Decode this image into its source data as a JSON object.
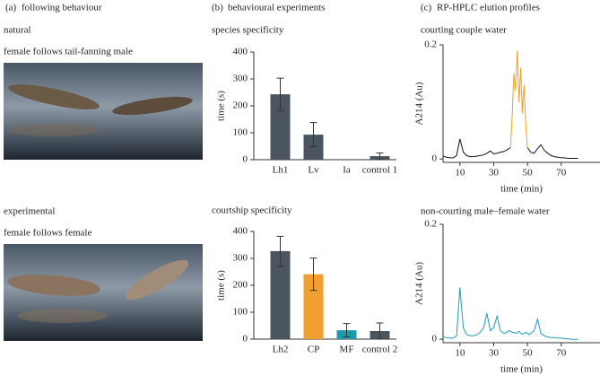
{
  "panels": {
    "a": {
      "label": "(a)",
      "title": "following behaviour",
      "captions": [
        "natural",
        "female follows tail-fanning male",
        "experimental",
        "female follows female"
      ]
    },
    "b": {
      "label": "(b)",
      "title": "behavioural experiments"
    },
    "c": {
      "label": "(c)",
      "title": "RP-HPLC elution profiles"
    }
  },
  "chart_data": [
    {
      "type": "bar",
      "title": "species specificity",
      "ylabel": "time (s)",
      "categories": [
        "Lh1",
        "Lv",
        "Ia",
        "control 1"
      ],
      "values": [
        243,
        93,
        0,
        13
      ],
      "errors": [
        60,
        45,
        0,
        12
      ],
      "colors": [
        "#4a5560",
        "#4a5560",
        "#4a5560",
        "#4a5560"
      ],
      "ylim": [
        0,
        400
      ],
      "yticks": [
        0,
        100,
        200,
        300,
        400
      ]
    },
    {
      "type": "bar",
      "title": "courtship specificity",
      "ylabel": "time (s)",
      "categories": [
        "Lh2",
        "CP",
        "MF",
        "control 2"
      ],
      "values": [
        327,
        241,
        33,
        30
      ],
      "errors": [
        55,
        60,
        25,
        30
      ],
      "colors": [
        "#4a5560",
        "#f0a030",
        "#1e9aaa",
        "#4a5560"
      ],
      "ylim": [
        0,
        400
      ],
      "yticks": [
        0,
        100,
        200,
        300,
        400
      ]
    },
    {
      "type": "line",
      "title": "courting couple water",
      "xlabel": "time (min)",
      "ylabel": "A214 (Au)",
      "x": [
        0,
        2,
        4,
        6,
        8,
        10,
        12,
        14,
        16,
        18,
        20,
        22,
        24,
        26,
        28,
        30,
        32,
        34,
        36,
        38,
        39,
        40,
        41,
        42,
        43,
        44,
        45,
        46,
        47,
        48,
        49,
        50,
        51,
        52,
        54,
        56,
        58,
        60,
        62,
        64,
        66,
        68,
        70,
        72,
        74,
        76,
        78,
        80
      ],
      "series": [
        {
          "color": "#111111",
          "values": [
            0.005,
            0.003,
            0.002,
            0.002,
            0.006,
            0.035,
            0.012,
            0.006,
            0.004,
            0.004,
            0.005,
            0.006,
            0.007,
            0.01,
            0.014,
            0.009,
            0.01,
            0.012,
            0.013,
            0.016,
            0.018,
            0.02,
            null,
            null,
            null,
            null,
            null,
            null,
            null,
            null,
            null,
            0.02,
            0.016,
            0.012,
            0.01,
            0.018,
            0.025,
            0.015,
            0.01,
            0.006,
            0.004,
            0.003,
            0.002,
            0.002,
            0.001,
            0.001,
            0.001,
            0.001
          ]
        },
        {
          "color": "#f0a020",
          "values": [
            null,
            null,
            null,
            null,
            null,
            null,
            null,
            null,
            null,
            null,
            null,
            null,
            null,
            null,
            null,
            null,
            null,
            null,
            null,
            null,
            null,
            0.02,
            0.08,
            0.15,
            0.12,
            0.19,
            0.1,
            0.16,
            0.08,
            0.13,
            0.06,
            0.02,
            null,
            null,
            null,
            null,
            null,
            null,
            null,
            null,
            null,
            null,
            null,
            null,
            null,
            null,
            null,
            null
          ]
        }
      ],
      "xlim": [
        0,
        93
      ],
      "ylim": [
        -0.006,
        0.2
      ],
      "xticks": [
        10,
        30,
        50,
        70
      ],
      "yticks": [
        0,
        0.2
      ]
    },
    {
      "type": "line",
      "title": "non-courting male–female water",
      "xlabel": "time (min)",
      "ylabel": "A214 (Au)",
      "x": [
        0,
        2,
        4,
        6,
        8,
        10,
        12,
        14,
        16,
        18,
        20,
        22,
        24,
        26,
        28,
        30,
        32,
        34,
        36,
        38,
        39,
        40,
        41,
        42,
        43,
        44,
        45,
        46,
        47,
        48,
        49,
        50,
        51,
        52,
        54,
        56,
        58,
        60,
        62,
        64,
        66,
        68,
        70,
        72,
        74,
        76,
        78,
        80
      ],
      "series": [
        {
          "color": "#1e9ab8",
          "values": [
            0.004,
            0.003,
            0.002,
            0.002,
            0.006,
            0.09,
            0.02,
            0.008,
            0.006,
            0.006,
            0.008,
            0.012,
            0.02,
            0.045,
            0.015,
            0.02,
            0.04,
            0.015,
            0.01,
            0.012,
            0.015,
            0.014,
            0.012,
            0.012,
            0.01,
            0.012,
            0.014,
            0.01,
            0.009,
            0.01,
            0.012,
            0.01,
            0.008,
            0.01,
            0.015,
            0.035,
            0.01,
            0.006,
            0.004,
            0.003,
            0.003,
            0.002,
            0.002,
            0.001,
            0.001,
            0,
            0,
            0
          ]
        }
      ],
      "xlim": [
        0,
        93
      ],
      "ylim": [
        -0.006,
        0.2
      ],
      "xticks": [
        10,
        30,
        50,
        70
      ],
      "yticks": [
        0,
        0.2
      ]
    }
  ]
}
